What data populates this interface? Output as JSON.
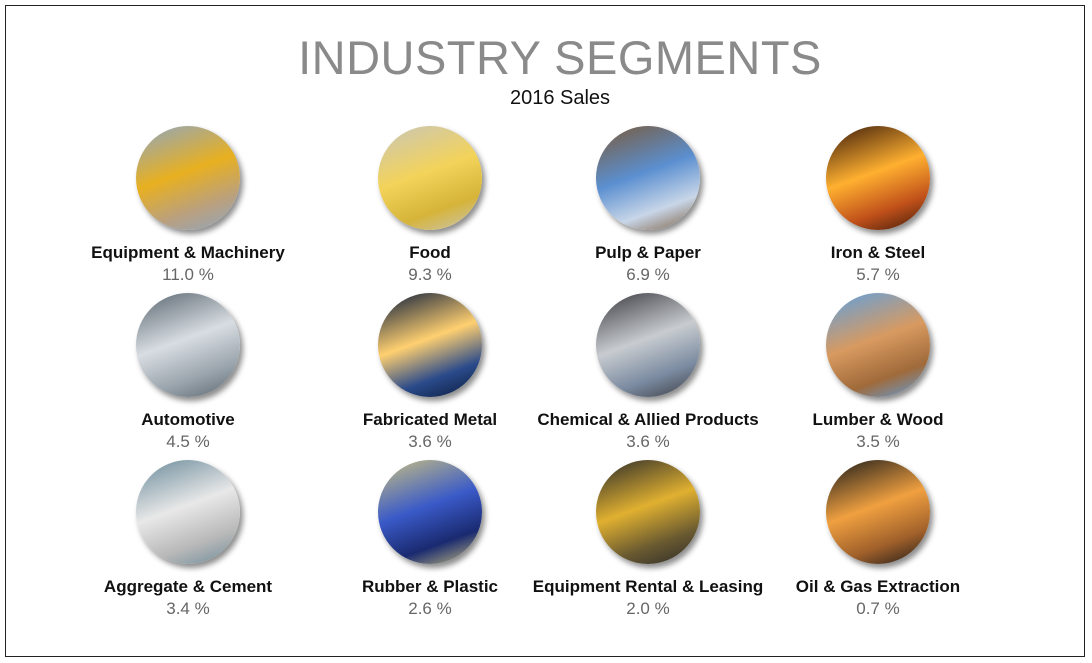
{
  "title": "INDUSTRY SEGMENTS",
  "subtitle": "2016 Sales",
  "segments": [
    {
      "name": "Equipment & Machinery",
      "value": "11.0 %",
      "icon": "dump-truck-excavator-photo",
      "colors": [
        "#e8b020",
        "#b9a080",
        "#8fa6c0"
      ]
    },
    {
      "name": "Food",
      "value": "9.3 %",
      "icon": "pasta-production-photo",
      "colors": [
        "#f3d35a",
        "#d6b43a",
        "#c9c6b8"
      ]
    },
    {
      "name": "Pulp & Paper",
      "value": "6.9 %",
      "icon": "paper-mill-logs-photo",
      "colors": [
        "#5b8fd0",
        "#c8d6e8",
        "#7a5a3a"
      ]
    },
    {
      "name": "Iron & Steel",
      "value": "5.7 %",
      "icon": "molten-steel-sparks-photo",
      "colors": [
        "#ffb030",
        "#c0501a",
        "#3a1a0a"
      ]
    },
    {
      "name": "Automotive",
      "value": "4.5 %",
      "icon": "car-assembly-line-photo",
      "colors": [
        "#d8dde2",
        "#9aa4ac",
        "#5a6670"
      ]
    },
    {
      "name": "Fabricated Metal",
      "value": "3.6 %",
      "icon": "refinery-night-photo",
      "colors": [
        "#ffd070",
        "#2a4a8a",
        "#0a1a3a"
      ]
    },
    {
      "name": "Chemical & Allied Products",
      "value": "3.6 %",
      "icon": "angle-grinder-photo",
      "colors": [
        "#c8ccd0",
        "#7a8aa0",
        "#3a3a40"
      ]
    },
    {
      "name": "Lumber & Wood",
      "value": "3.5 %",
      "icon": "log-pile-photo",
      "colors": [
        "#d89a60",
        "#a06a3a",
        "#5fa0e0"
      ]
    },
    {
      "name": "Aggregate & Cement",
      "value": "3.4 %",
      "icon": "gravel-conveyor-photo",
      "colors": [
        "#e8e8e8",
        "#b8b8b8",
        "#6a8a9a"
      ]
    },
    {
      "name": "Rubber & Plastic",
      "value": "2.6 %",
      "icon": "plastic-bottles-photo",
      "colors": [
        "#3a5ac8",
        "#1a2a70",
        "#c8c080"
      ]
    },
    {
      "name": "Equipment Rental & Leasing",
      "value": "2.0 %",
      "icon": "mining-truck-tire-photo",
      "colors": [
        "#e0b030",
        "#6a5a30",
        "#2a2a2a"
      ]
    },
    {
      "name": "Oil & Gas Extraction",
      "value": "0.7 %",
      "icon": "oil-pump-sunset-photo",
      "colors": [
        "#f0a040",
        "#a0602a",
        "#1a1a1a"
      ]
    }
  ]
}
